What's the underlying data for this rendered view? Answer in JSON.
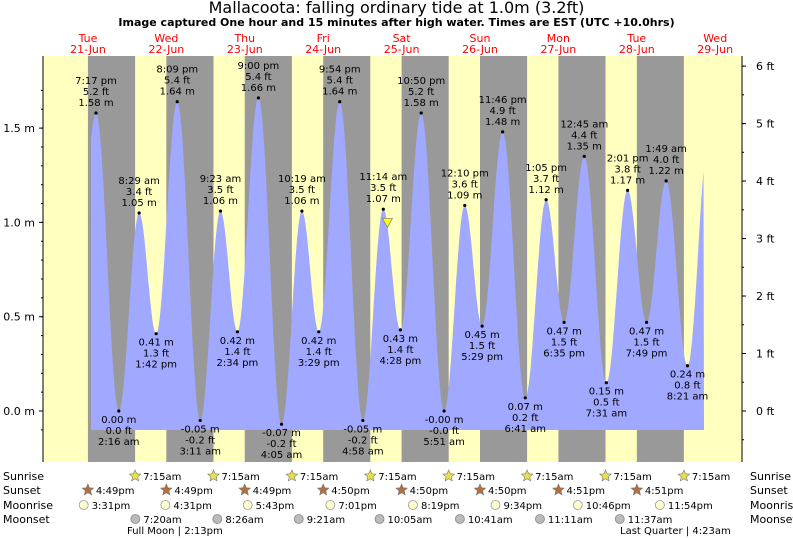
{
  "title": "Mallacoota: falling  ordinary tide at 1.0m (3.2ft)",
  "subtitle": "Image captured One hour and 15 minutes after high water. Times are EST (UTC +10.0hrs)",
  "colors": {
    "day": "#ffffc0",
    "night": "#999999",
    "tide_fill": "#a0a8ff",
    "day_label": "#ff0000",
    "marker": "#ffff00"
  },
  "icons": {
    "sunrise": "sun-star-yellow",
    "sunset": "sun-star-orange",
    "moonrise": "moon-circle-light",
    "moonset": "moon-circle-grey"
  },
  "row_labels": {
    "sunrise": "Sunrise",
    "sunset": "Sunset",
    "moonrise": "Moonrise",
    "moonset": "Moonset"
  },
  "chart_data": {
    "type": "area",
    "title": "Mallacoota: falling  ordinary tide at 1.0m (3.2ft)",
    "days": [
      {
        "weekday": "Tue",
        "date": "21-Jun"
      },
      {
        "weekday": "Wed",
        "date": "22-Jun"
      },
      {
        "weekday": "Thu",
        "date": "23-Jun"
      },
      {
        "weekday": "Fri",
        "date": "24-Jun"
      },
      {
        "weekday": "Sat",
        "date": "25-Jun"
      },
      {
        "weekday": "Sun",
        "date": "26-Jun"
      },
      {
        "weekday": "Mon",
        "date": "27-Jun"
      },
      {
        "weekday": "Tue",
        "date": "28-Jun"
      },
      {
        "weekday": "Wed",
        "date": "29-Jun"
      }
    ],
    "y_left": {
      "unit": "m",
      "ticks": [
        "0.0 m",
        "0.5 m",
        "1.0 m",
        "1.5 m"
      ],
      "values": [
        0,
        0.5,
        1.0,
        1.5
      ]
    },
    "y_right": {
      "unit": "ft",
      "ticks": [
        "0 ft",
        "1 ft",
        "2 ft",
        "3 ft",
        "4 ft",
        "5 ft",
        "6 ft"
      ],
      "values": [
        0,
        1,
        2,
        3,
        4,
        5,
        6
      ]
    },
    "ylim_m": [
      -0.1,
      1.78
    ],
    "current": {
      "level_m": 1.0,
      "day": 4,
      "hour": 12.5
    },
    "tides": [
      {
        "type": "high",
        "day": 0,
        "time": "7:17 pm",
        "ft": "5.2 ft",
        "m": 1.58
      },
      {
        "type": "low",
        "day": 1,
        "time": "2:16 am",
        "ft": "0.0 ft",
        "m": 0.0,
        "m_label": "0.00 m"
      },
      {
        "type": "high",
        "day": 1,
        "time": "8:29 am",
        "ft": "3.4 ft",
        "m": 1.05
      },
      {
        "type": "low",
        "day": 1,
        "time": "1:42 pm",
        "ft": "1.3 ft",
        "m": 0.41
      },
      {
        "type": "high",
        "day": 1,
        "time": "8:09 pm",
        "ft": "5.4 ft",
        "m": 1.64
      },
      {
        "type": "low",
        "day": 2,
        "time": "3:11 am",
        "ft": "-0.2 ft",
        "m": -0.05
      },
      {
        "type": "high",
        "day": 2,
        "time": "9:23 am",
        "ft": "3.5 ft",
        "m": 1.06
      },
      {
        "type": "low",
        "day": 2,
        "time": "2:34 pm",
        "ft": "1.4 ft",
        "m": 0.42
      },
      {
        "type": "high",
        "day": 2,
        "time": "9:00 pm",
        "ft": "5.4 ft",
        "m": 1.66
      },
      {
        "type": "low",
        "day": 3,
        "time": "4:05 am",
        "ft": "-0.2 ft",
        "m": -0.07
      },
      {
        "type": "high",
        "day": 3,
        "time": "10:19 am",
        "ft": "3.5 ft",
        "m": 1.06
      },
      {
        "type": "low",
        "day": 3,
        "time": "3:29 pm",
        "ft": "1.4 ft",
        "m": 0.42
      },
      {
        "type": "high",
        "day": 3,
        "time": "9:54 pm",
        "ft": "5.4 ft",
        "m": 1.64
      },
      {
        "type": "low",
        "day": 4,
        "time": "4:58 am",
        "ft": "-0.2 ft",
        "m": -0.05
      },
      {
        "type": "high",
        "day": 4,
        "time": "11:14 am",
        "ft": "3.5 ft",
        "m": 1.07
      },
      {
        "type": "low",
        "day": 4,
        "time": "4:28 pm",
        "ft": "1.4 ft",
        "m": 0.43
      },
      {
        "type": "high",
        "day": 4,
        "time": "10:50 pm",
        "ft": "5.2 ft",
        "m": 1.58
      },
      {
        "type": "low",
        "day": 5,
        "time": "5:51 am",
        "ft": "-0.0 ft",
        "m": 0.0,
        "m_label": "-0.00 m"
      },
      {
        "type": "high",
        "day": 5,
        "time": "12:10 pm",
        "ft": "3.6 ft",
        "m": 1.09
      },
      {
        "type": "low",
        "day": 5,
        "time": "5:29 pm",
        "ft": "1.5 ft",
        "m": 0.45
      },
      {
        "type": "high",
        "day": 5,
        "time": "11:46 pm",
        "ft": "4.9 ft",
        "m": 1.48
      },
      {
        "type": "low",
        "day": 6,
        "time": "6:41 am",
        "ft": "0.2 ft",
        "m": 0.07
      },
      {
        "type": "high",
        "day": 6,
        "time": "1:05 pm",
        "ft": "3.7 ft",
        "m": 1.12
      },
      {
        "type": "low",
        "day": 6,
        "time": "6:35 pm",
        "ft": "1.5 ft",
        "m": 0.47
      },
      {
        "type": "high",
        "day": 7,
        "time": "12:45 am",
        "ft": "4.4 ft",
        "m": 1.35
      },
      {
        "type": "low",
        "day": 7,
        "time": "7:31 am",
        "ft": "0.5 ft",
        "m": 0.15
      },
      {
        "type": "high",
        "day": 7,
        "time": "2:01 pm",
        "ft": "3.8 ft",
        "m": 1.17
      },
      {
        "type": "low",
        "day": 7,
        "time": "7:49 pm",
        "ft": "1.5 ft",
        "m": 0.47
      },
      {
        "type": "high",
        "day": 8,
        "time": "1:49 am",
        "ft": "4.0 ft",
        "m": 1.22
      },
      {
        "type": "low",
        "day": 8,
        "time": "8:21 am",
        "ft": "0.8 ft",
        "m": 0.24
      }
    ]
  },
  "astro": {
    "sunrise": [
      {
        "day": 1,
        "time": "7:15am"
      },
      {
        "day": 2,
        "time": "7:15am"
      },
      {
        "day": 3,
        "time": "7:15am"
      },
      {
        "day": 4,
        "time": "7:15am"
      },
      {
        "day": 5,
        "time": "7:15am"
      },
      {
        "day": 6,
        "time": "7:15am"
      },
      {
        "day": 7,
        "time": "7:15am"
      },
      {
        "day": 8,
        "time": "7:15am"
      }
    ],
    "sunset": [
      {
        "day": 0,
        "time": "4:49pm"
      },
      {
        "day": 1,
        "time": "4:49pm"
      },
      {
        "day": 2,
        "time": "4:49pm"
      },
      {
        "day": 3,
        "time": "4:50pm"
      },
      {
        "day": 4,
        "time": "4:50pm"
      },
      {
        "day": 5,
        "time": "4:50pm"
      },
      {
        "day": 6,
        "time": "4:51pm"
      },
      {
        "day": 7,
        "time": "4:51pm"
      }
    ],
    "moonrise": [
      {
        "day": 0,
        "time": "3:31pm"
      },
      {
        "day": 1,
        "time": "4:31pm"
      },
      {
        "day": 2,
        "time": "5:43pm"
      },
      {
        "day": 3,
        "time": "7:01pm"
      },
      {
        "day": 4,
        "time": "8:19pm"
      },
      {
        "day": 5,
        "time": "9:34pm"
      },
      {
        "day": 6,
        "time": "10:46pm"
      },
      {
        "day": 7,
        "time": "11:54pm"
      }
    ],
    "moonset": [
      {
        "day": 1,
        "time": "7:20am"
      },
      {
        "day": 2,
        "time": "8:26am"
      },
      {
        "day": 3,
        "time": "9:21am"
      },
      {
        "day": 4,
        "time": "10:05am"
      },
      {
        "day": 5,
        "time": "10:41am"
      },
      {
        "day": 6,
        "time": "11:11am"
      },
      {
        "day": 7,
        "time": "11:37am"
      }
    ],
    "moon_phases": [
      {
        "label": "Full Moon",
        "time": "2:13pm"
      },
      {
        "label": "Last Quarter",
        "time": "4:23am"
      }
    ]
  }
}
